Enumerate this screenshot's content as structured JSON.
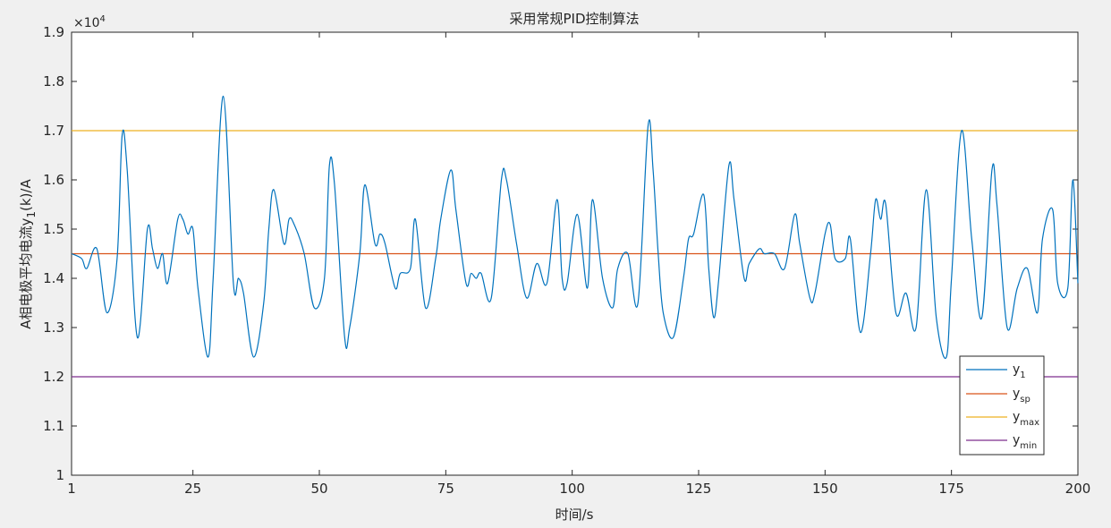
{
  "chart_data": {
    "type": "line",
    "title": "采用常规PID控制算法",
    "xlabel": "时间/s",
    "ylabel_parts": [
      "A相电极平均电流y",
      "1",
      "(k)/A"
    ],
    "exponent_label": {
      "base": "×10",
      "exp": "4"
    },
    "xlim": [
      1,
      200
    ],
    "ylim": [
      1.0,
      1.9
    ],
    "y_scale": 10000,
    "xticks": [
      1,
      25,
      50,
      75,
      100,
      125,
      150,
      175,
      200
    ],
    "xtick_labels": [
      "1",
      "25",
      "50",
      "75",
      "100",
      "125",
      "150",
      "175",
      "200"
    ],
    "yticks": [
      1.0,
      1.1,
      1.2,
      1.3,
      1.4,
      1.5,
      1.6,
      1.7,
      1.8,
      1.9
    ],
    "ytick_labels": [
      "1",
      "1.1",
      "1.2",
      "1.3",
      "1.4",
      "1.5",
      "1.6",
      "1.7",
      "1.8",
      "1.9"
    ],
    "grid": false,
    "legend_position": "bottom-right",
    "series": [
      {
        "name": "y1",
        "label_main": "y",
        "label_sub": "1",
        "color": "#0072bd",
        "x": [
          1,
          3,
          4,
          6,
          8,
          10,
          11,
          12,
          14,
          16,
          17,
          18,
          19,
          20,
          22,
          23,
          24,
          25,
          26,
          28,
          29,
          31,
          33,
          34,
          35,
          37,
          39,
          40,
          41,
          43,
          44,
          45,
          47,
          49,
          51,
          52,
          53,
          55,
          56,
          58,
          59,
          61,
          62,
          63,
          65,
          66,
          68,
          69,
          71,
          73,
          74,
          76,
          77,
          79,
          80,
          81,
          82,
          84,
          86,
          87,
          89,
          91,
          93,
          95,
          97,
          98,
          99,
          101,
          103,
          104,
          106,
          108,
          109,
          111,
          113,
          115,
          116,
          117,
          118,
          120,
          122,
          123,
          124,
          126,
          127,
          128,
          129,
          131,
          132,
          134,
          135,
          137,
          138,
          140,
          142,
          144,
          145,
          147,
          148,
          150,
          151,
          152,
          154,
          155,
          157,
          159,
          160,
          161,
          162,
          164,
          166,
          168,
          170,
          172,
          174,
          175,
          177,
          179,
          181,
          183,
          184,
          186,
          188,
          190,
          192,
          193,
          195,
          196,
          198,
          199,
          200
        ],
        "y": [
          1.45,
          1.44,
          1.42,
          1.46,
          1.33,
          1.44,
          1.69,
          1.62,
          1.28,
          1.5,
          1.46,
          1.42,
          1.45,
          1.39,
          1.52,
          1.52,
          1.49,
          1.5,
          1.38,
          1.24,
          1.4,
          1.77,
          1.39,
          1.4,
          1.37,
          1.24,
          1.35,
          1.5,
          1.58,
          1.47,
          1.52,
          1.51,
          1.45,
          1.34,
          1.4,
          1.63,
          1.59,
          1.28,
          1.3,
          1.45,
          1.59,
          1.47,
          1.49,
          1.47,
          1.38,
          1.41,
          1.42,
          1.52,
          1.34,
          1.44,
          1.52,
          1.62,
          1.54,
          1.39,
          1.41,
          1.4,
          1.41,
          1.36,
          1.6,
          1.6,
          1.47,
          1.36,
          1.43,
          1.39,
          1.56,
          1.4,
          1.39,
          1.53,
          1.38,
          1.56,
          1.4,
          1.34,
          1.42,
          1.45,
          1.35,
          1.71,
          1.62,
          1.45,
          1.33,
          1.28,
          1.4,
          1.48,
          1.49,
          1.57,
          1.42,
          1.32,
          1.4,
          1.63,
          1.56,
          1.4,
          1.43,
          1.46,
          1.45,
          1.45,
          1.42,
          1.53,
          1.47,
          1.36,
          1.37,
          1.49,
          1.51,
          1.44,
          1.44,
          1.48,
          1.29,
          1.45,
          1.56,
          1.52,
          1.55,
          1.33,
          1.37,
          1.3,
          1.58,
          1.32,
          1.24,
          1.4,
          1.7,
          1.48,
          1.32,
          1.62,
          1.55,
          1.3,
          1.38,
          1.42,
          1.33,
          1.48,
          1.54,
          1.39,
          1.38,
          1.6,
          1.39
        ]
      },
      {
        "name": "ysp",
        "label_main": "y",
        "label_sub": "sp",
        "color": "#d95319",
        "constant": 1.45
      },
      {
        "name": "ymax",
        "label_main": "y",
        "label_sub": "max",
        "color": "#edb120",
        "constant": 1.7
      },
      {
        "name": "ymin",
        "label_main": "y",
        "label_sub": "min",
        "color": "#7e2f8e",
        "constant": 1.2
      }
    ]
  }
}
